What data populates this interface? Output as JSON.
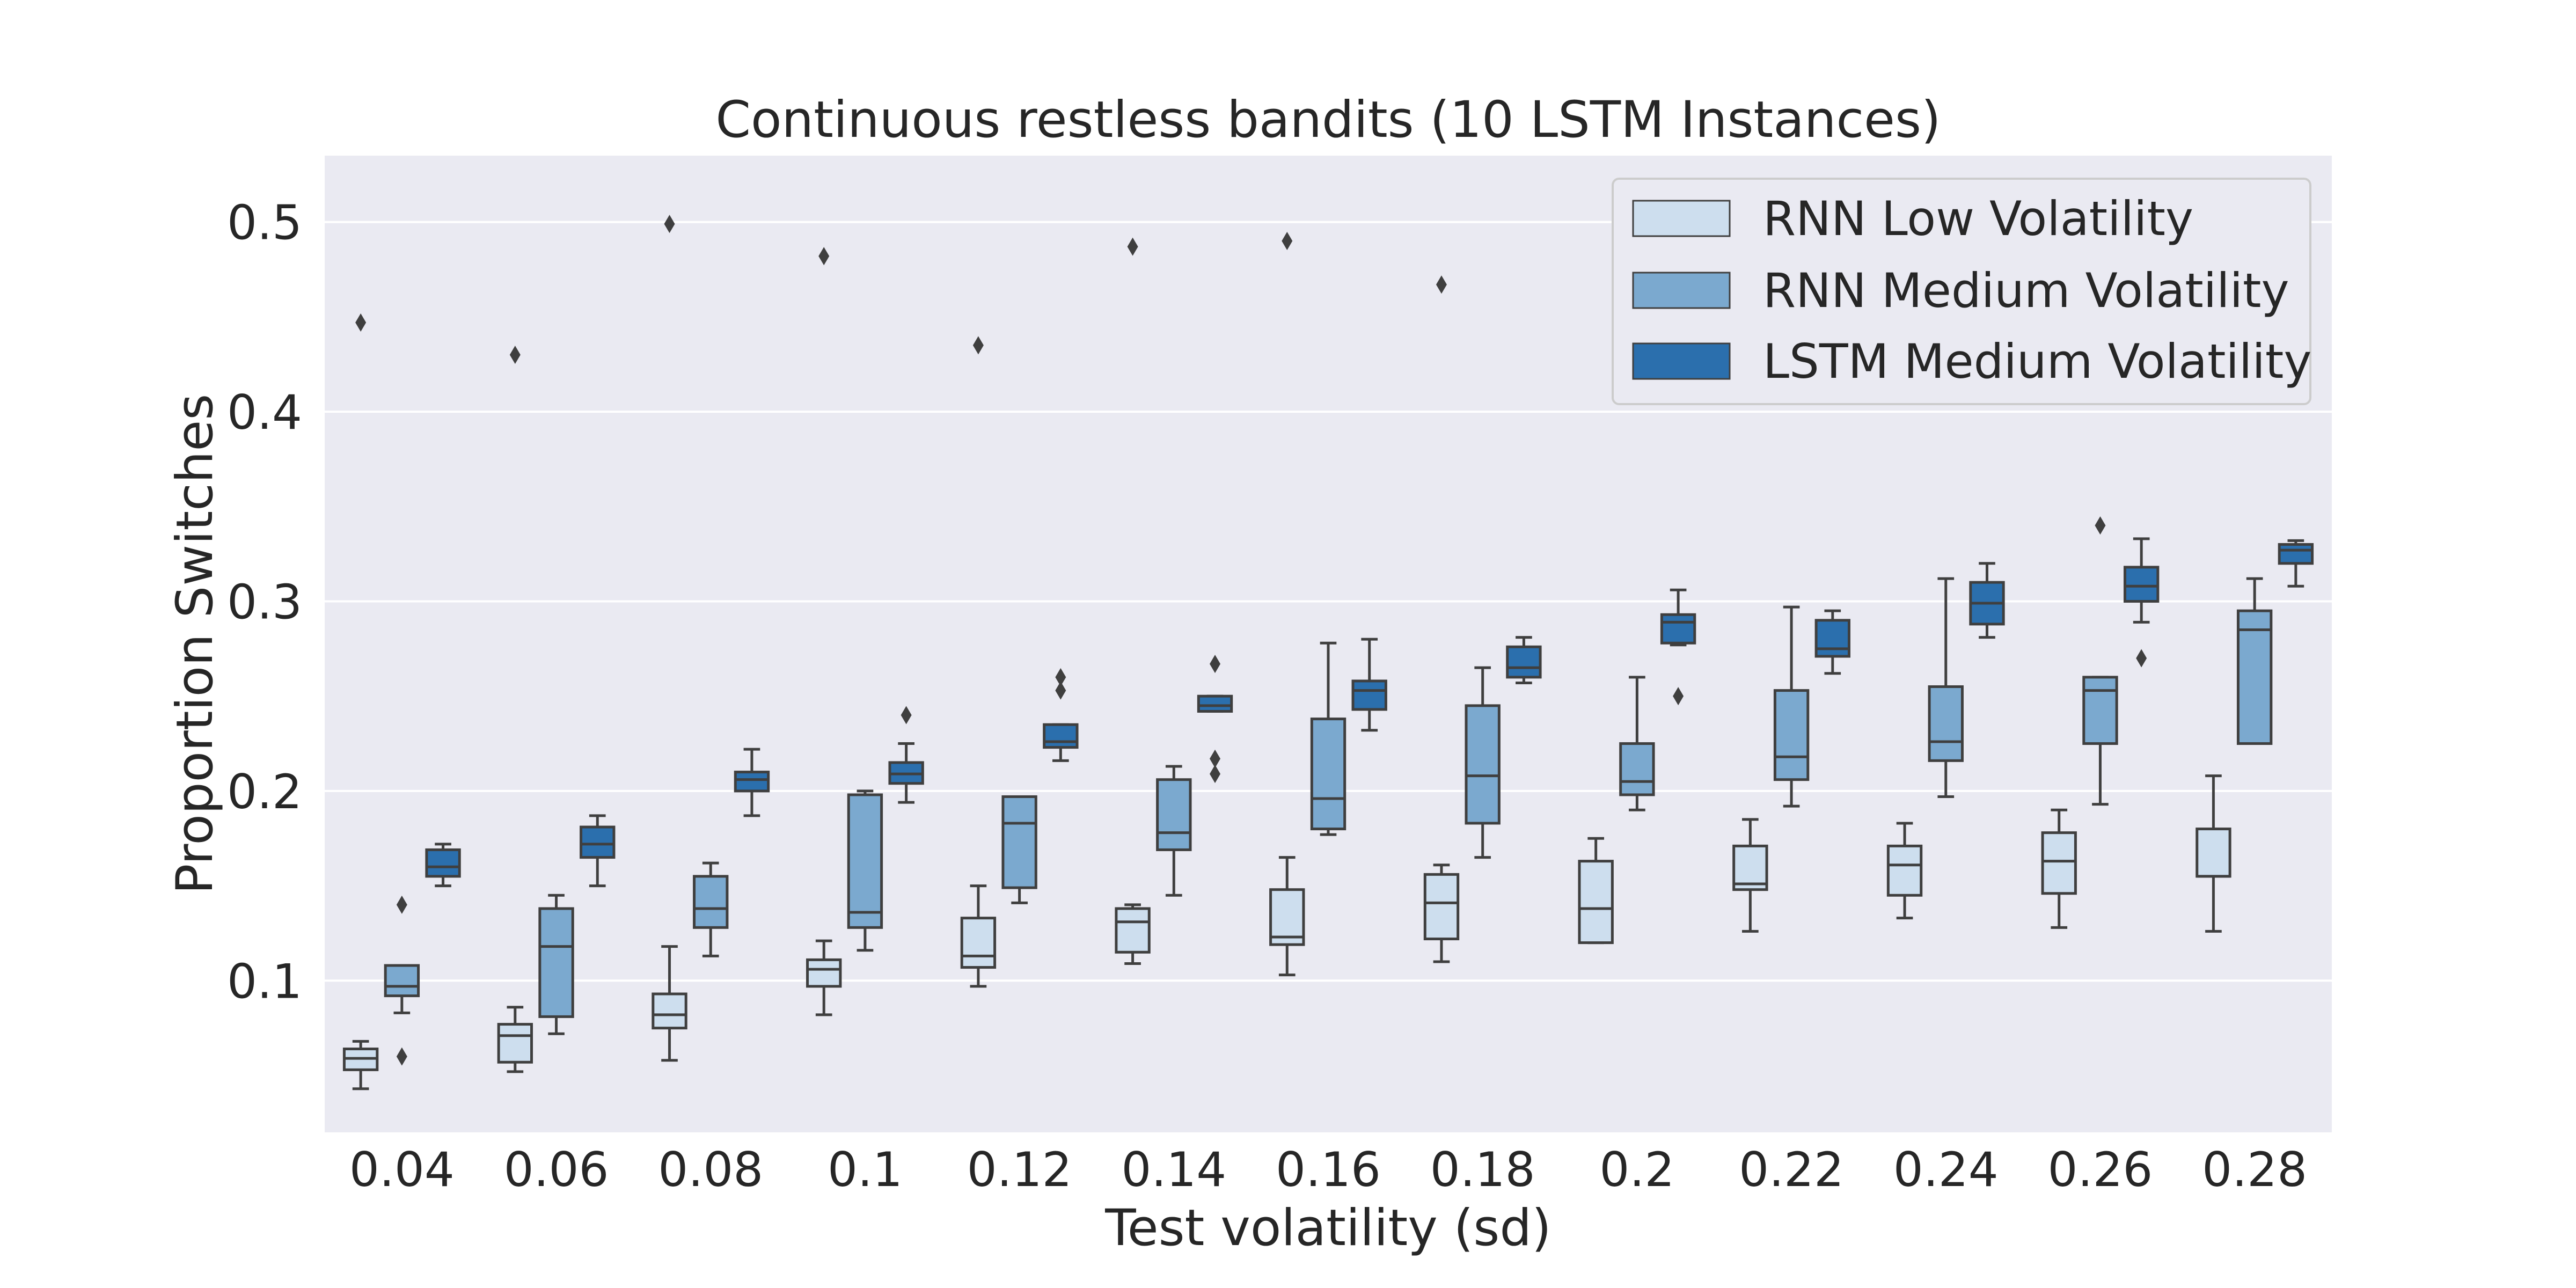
{
  "chart_data": {
    "type": "box",
    "title": "Continuous restless bandits (10 LSTM Instances)",
    "xlabel": "Test volatility (sd)",
    "ylabel": "Proportion Switches",
    "categories": [
      "0.04",
      "0.06",
      "0.08",
      "0.1",
      "0.12",
      "0.14",
      "0.16",
      "0.18",
      "0.2",
      "0.22",
      "0.24",
      "0.26",
      "0.28"
    ],
    "yticks": [
      "0.1",
      "0.2",
      "0.3",
      "0.4",
      "0.5"
    ],
    "ylim": [
      0.02,
      0.535
    ],
    "grid": true,
    "legend_position": "top-right",
    "series": [
      {
        "name": "RNN Low Volatility",
        "color": "#cddeee",
        "boxes": [
          {
            "whislo": 0.043,
            "q1": 0.053,
            "med": 0.059,
            "q3": 0.064,
            "whishi": 0.068,
            "fliers": [
              0.447
            ]
          },
          {
            "whislo": 0.052,
            "q1": 0.057,
            "med": 0.071,
            "q3": 0.077,
            "whishi": 0.086,
            "fliers": [
              0.43
            ]
          },
          {
            "whislo": 0.058,
            "q1": 0.075,
            "med": 0.082,
            "q3": 0.093,
            "whishi": 0.118,
            "fliers": [
              0.499
            ]
          },
          {
            "whislo": 0.082,
            "q1": 0.097,
            "med": 0.106,
            "q3": 0.111,
            "whishi": 0.121,
            "fliers": [
              0.482
            ]
          },
          {
            "whislo": 0.097,
            "q1": 0.107,
            "med": 0.113,
            "q3": 0.133,
            "whishi": 0.15,
            "fliers": [
              0.435
            ]
          },
          {
            "whislo": 0.109,
            "q1": 0.115,
            "med": 0.131,
            "q3": 0.138,
            "whishi": 0.14,
            "fliers": [
              0.487
            ]
          },
          {
            "whislo": 0.103,
            "q1": 0.119,
            "med": 0.123,
            "q3": 0.148,
            "whishi": 0.165,
            "fliers": [
              0.49
            ]
          },
          {
            "whislo": 0.11,
            "q1": 0.122,
            "med": 0.141,
            "q3": 0.156,
            "whishi": 0.161,
            "fliers": [
              0.467
            ]
          },
          {
            "whislo": 0.12,
            "q1": 0.12,
            "med": 0.138,
            "q3": 0.163,
            "whishi": 0.175,
            "fliers": []
          },
          {
            "whislo": 0.126,
            "q1": 0.148,
            "med": 0.151,
            "q3": 0.171,
            "whishi": 0.185,
            "fliers": []
          },
          {
            "whislo": 0.133,
            "q1": 0.145,
            "med": 0.161,
            "q3": 0.171,
            "whishi": 0.183,
            "fliers": [
              0.481
            ]
          },
          {
            "whislo": 0.128,
            "q1": 0.146,
            "med": 0.163,
            "q3": 0.178,
            "whishi": 0.19,
            "fliers": [
              0.514
            ]
          },
          {
            "whislo": 0.126,
            "q1": 0.155,
            "med": 0.155,
            "q3": 0.18,
            "whishi": 0.208,
            "fliers": [
              0.473
            ]
          }
        ]
      },
      {
        "name": "RNN Medium Volatility",
        "color": "#7ba9cf",
        "boxes": [
          {
            "whislo": 0.083,
            "q1": 0.092,
            "med": 0.097,
            "q3": 0.108,
            "whishi": 0.108,
            "fliers": [
              0.14,
              0.06
            ]
          },
          {
            "whislo": 0.072,
            "q1": 0.081,
            "med": 0.118,
            "q3": 0.138,
            "whishi": 0.145,
            "fliers": []
          },
          {
            "whislo": 0.113,
            "q1": 0.128,
            "med": 0.138,
            "q3": 0.155,
            "whishi": 0.162,
            "fliers": []
          },
          {
            "whislo": 0.116,
            "q1": 0.128,
            "med": 0.136,
            "q3": 0.198,
            "whishi": 0.2,
            "fliers": []
          },
          {
            "whislo": 0.141,
            "q1": 0.149,
            "med": 0.183,
            "q3": 0.197,
            "whishi": 0.197,
            "fliers": []
          },
          {
            "whislo": 0.145,
            "q1": 0.169,
            "med": 0.178,
            "q3": 0.206,
            "whishi": 0.213,
            "fliers": []
          },
          {
            "whislo": 0.177,
            "q1": 0.18,
            "med": 0.196,
            "q3": 0.238,
            "whishi": 0.278,
            "fliers": []
          },
          {
            "whislo": 0.165,
            "q1": 0.183,
            "med": 0.208,
            "q3": 0.245,
            "whishi": 0.265,
            "fliers": []
          },
          {
            "whislo": 0.19,
            "q1": 0.198,
            "med": 0.205,
            "q3": 0.225,
            "whishi": 0.26,
            "fliers": []
          },
          {
            "whislo": 0.192,
            "q1": 0.206,
            "med": 0.218,
            "q3": 0.253,
            "whishi": 0.297,
            "fliers": []
          },
          {
            "whislo": 0.197,
            "q1": 0.216,
            "med": 0.226,
            "q3": 0.255,
            "whishi": 0.312,
            "fliers": []
          },
          {
            "whislo": 0.193,
            "q1": 0.225,
            "med": 0.253,
            "q3": 0.26,
            "whishi": 0.26,
            "fliers": [
              0.34
            ]
          },
          {
            "whislo": 0.225,
            "q1": 0.225,
            "med": 0.285,
            "q3": 0.295,
            "whishi": 0.312,
            "fliers": []
          }
        ]
      },
      {
        "name": "LSTM Medium Volatility",
        "color": "#2b6fad",
        "boxes": [
          {
            "whislo": 0.15,
            "q1": 0.155,
            "med": 0.16,
            "q3": 0.169,
            "whishi": 0.172,
            "fliers": []
          },
          {
            "whislo": 0.15,
            "q1": 0.165,
            "med": 0.172,
            "q3": 0.181,
            "whishi": 0.187,
            "fliers": []
          },
          {
            "whislo": 0.187,
            "q1": 0.2,
            "med": 0.206,
            "q3": 0.21,
            "whishi": 0.222,
            "fliers": []
          },
          {
            "whislo": 0.194,
            "q1": 0.204,
            "med": 0.209,
            "q3": 0.215,
            "whishi": 0.225,
            "fliers": [
              0.24
            ]
          },
          {
            "whislo": 0.216,
            "q1": 0.223,
            "med": 0.226,
            "q3": 0.235,
            "whishi": 0.235,
            "fliers": [
              0.26,
              0.253
            ]
          },
          {
            "whislo": 0.242,
            "q1": 0.242,
            "med": 0.245,
            "q3": 0.25,
            "whishi": 0.25,
            "fliers": [
              0.267,
              0.217,
              0.209
            ]
          },
          {
            "whislo": 0.232,
            "q1": 0.243,
            "med": 0.253,
            "q3": 0.258,
            "whishi": 0.28,
            "fliers": []
          },
          {
            "whislo": 0.257,
            "q1": 0.26,
            "med": 0.265,
            "q3": 0.276,
            "whishi": 0.281,
            "fliers": []
          },
          {
            "whislo": 0.277,
            "q1": 0.278,
            "med": 0.289,
            "q3": 0.293,
            "whishi": 0.306,
            "fliers": [
              0.25
            ]
          },
          {
            "whislo": 0.262,
            "q1": 0.271,
            "med": 0.275,
            "q3": 0.29,
            "whishi": 0.295,
            "fliers": []
          },
          {
            "whislo": 0.281,
            "q1": 0.288,
            "med": 0.299,
            "q3": 0.31,
            "whishi": 0.32,
            "fliers": []
          },
          {
            "whislo": 0.289,
            "q1": 0.3,
            "med": 0.308,
            "q3": 0.318,
            "whishi": 0.333,
            "fliers": [
              0.27
            ]
          },
          {
            "whislo": 0.308,
            "q1": 0.32,
            "med": 0.327,
            "q3": 0.33,
            "whishi": 0.332,
            "fliers": []
          }
        ]
      }
    ]
  }
}
